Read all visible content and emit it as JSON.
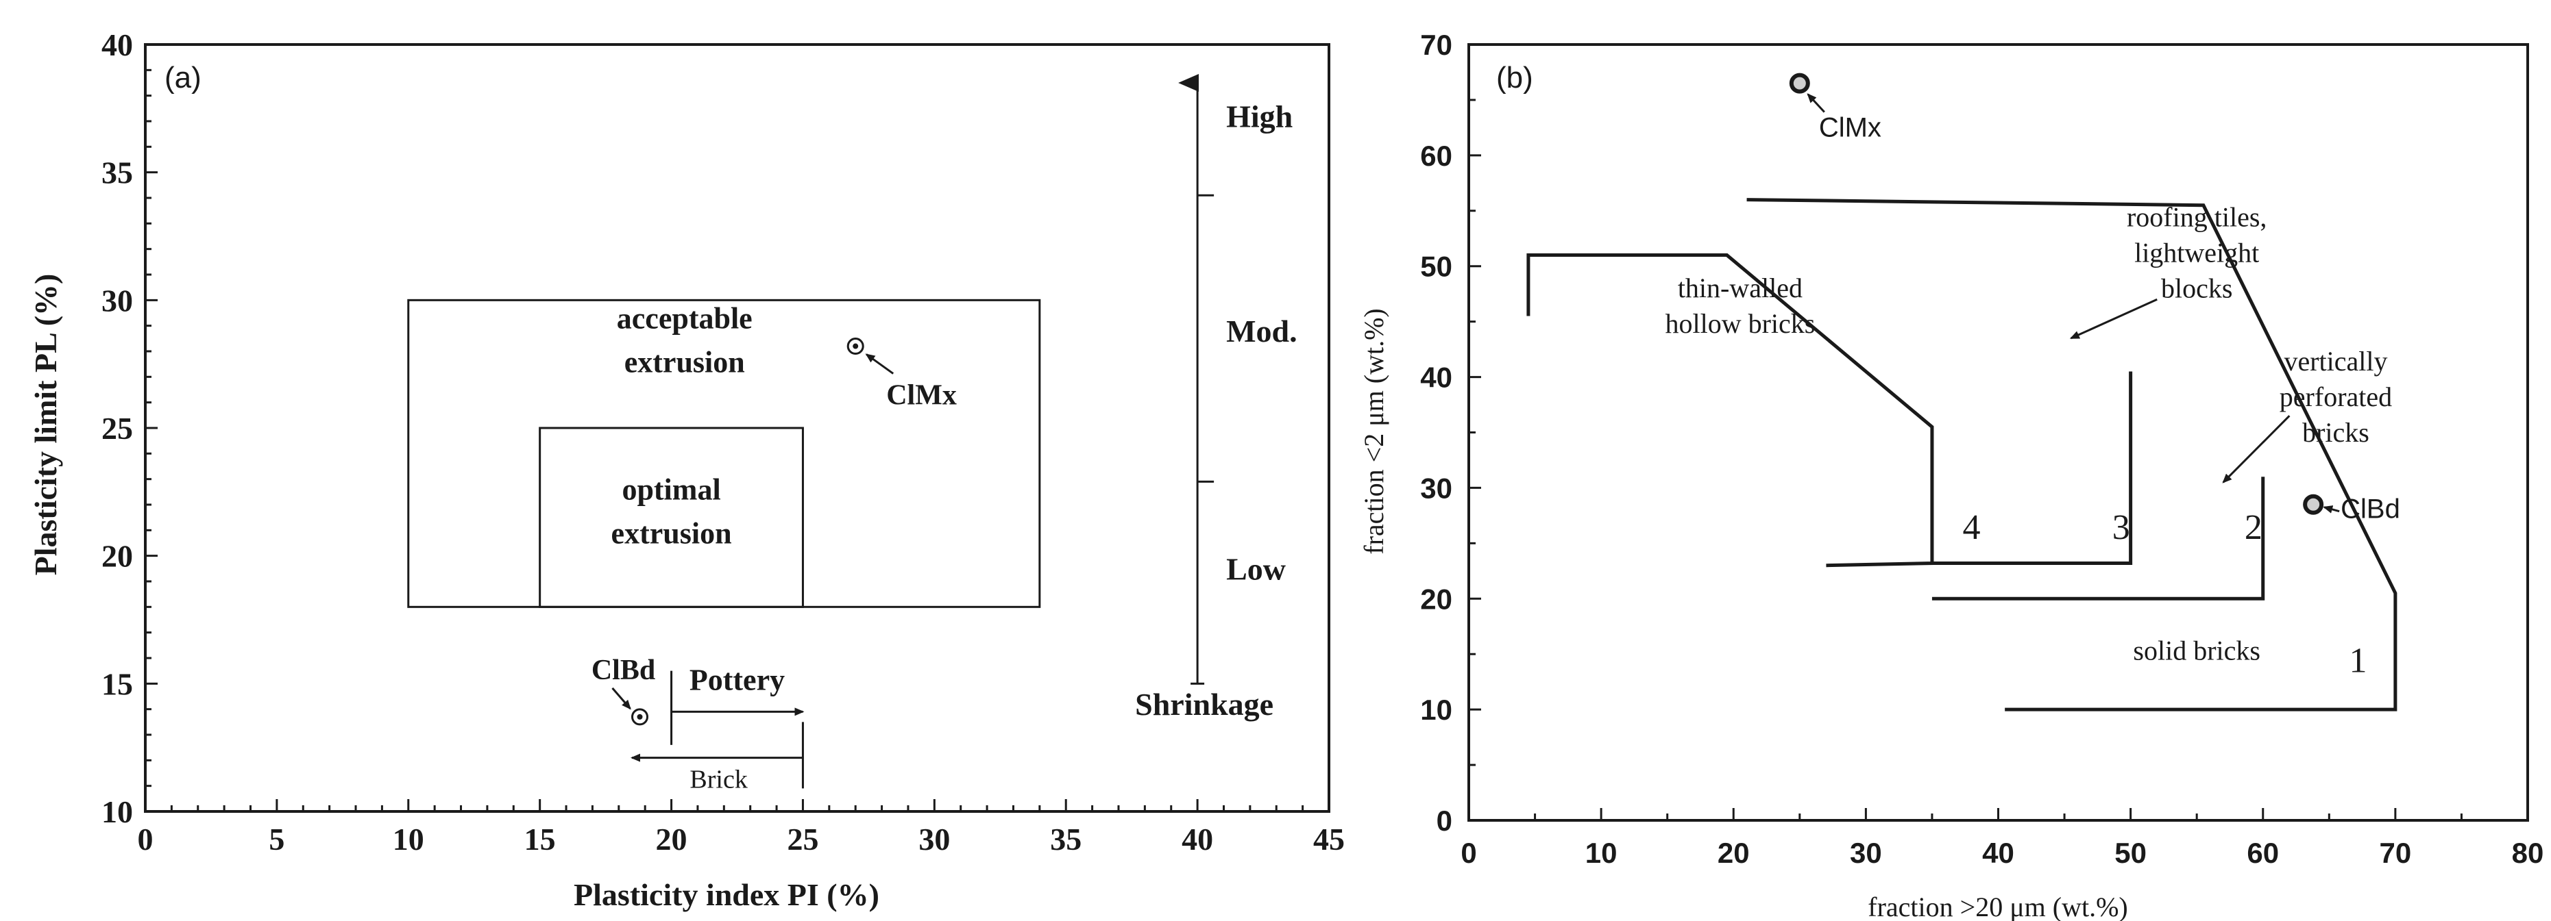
{
  "chart_data": [
    {
      "panel": "(a)",
      "type": "scatter",
      "xlabel": "Plasticity index PI (%)",
      "ylabel": "Plasticity limit PL (%)",
      "xlim": [
        0,
        45
      ],
      "ylim": [
        10,
        40
      ],
      "xticks": [
        0,
        5,
        10,
        15,
        20,
        25,
        30,
        35,
        40,
        45
      ],
      "yticks": [
        10,
        15,
        20,
        25,
        30,
        35,
        40
      ],
      "regions": [
        {
          "label": "acceptable extrusion",
          "x": [
            10,
            34
          ],
          "y": [
            18,
            30
          ]
        },
        {
          "label": "optimal extrusion",
          "x": [
            15,
            25
          ],
          "y": [
            18,
            25
          ]
        }
      ],
      "points": [
        {
          "label": "ClMx",
          "x": 27,
          "y": 28.2
        },
        {
          "label": "ClBd",
          "x": 18.8,
          "y": 13.7
        }
      ],
      "ranges": [
        {
          "label": "Pottery",
          "x": [
            20,
            25
          ],
          "y": 13.9,
          "direction": "right"
        },
        {
          "label": "Brick",
          "x": [
            18.5,
            25
          ],
          "y": 12.1,
          "direction": "left"
        }
      ],
      "shrinkage_scale": {
        "label": "Shrinkage",
        "x": 40,
        "y_range": [
          15,
          38.5
        ],
        "levels": [
          "Low",
          "Mod.",
          "High"
        ]
      }
    },
    {
      "panel": "(b)",
      "type": "scatter",
      "xlabel": "fraction >20 μm (wt.%)",
      "ylabel": "fraction <2 μm (wt.%)",
      "xlim": [
        0,
        80
      ],
      "ylim": [
        0,
        70
      ],
      "xticks": [
        0,
        10,
        20,
        30,
        40,
        50,
        60,
        70,
        80
      ],
      "yticks": [
        0,
        10,
        20,
        30,
        40,
        50,
        60,
        70
      ],
      "points": [
        {
          "label": "ClMx",
          "x": 25,
          "y": 66.5
        },
        {
          "label": "ClBd",
          "x": 63.8,
          "y": 28.5
        }
      ],
      "zones": [
        {
          "id": "1",
          "label": "solid bricks",
          "polygon": [
            [
              40.5,
              10
            ],
            [
              70,
              10
            ],
            [
              70,
              20.5
            ],
            [
              55.5,
              55.5
            ],
            [
              21,
              56
            ]
          ]
        },
        {
          "id": "2",
          "label": "vertically perforated bricks",
          "polygon": [
            [
              35,
              20
            ],
            [
              60,
              20
            ],
            [
              60,
              31
            ]
          ]
        },
        {
          "id": "3",
          "label": "roofing tiles, lightweight blocks",
          "polygon": [
            [
              35,
              23.2
            ],
            [
              50,
              23.2
            ],
            [
              50,
              40.5
            ]
          ]
        },
        {
          "id": "4",
          "label": "thin-walled hollow bricks",
          "polygon": [
            [
              4.5,
              45.5
            ],
            [
              4.5,
              51
            ],
            [
              19.5,
              51
            ],
            [
              35,
              35.5
            ],
            [
              35,
              23.2
            ],
            [
              27,
              23
            ]
          ]
        }
      ]
    }
  ]
}
